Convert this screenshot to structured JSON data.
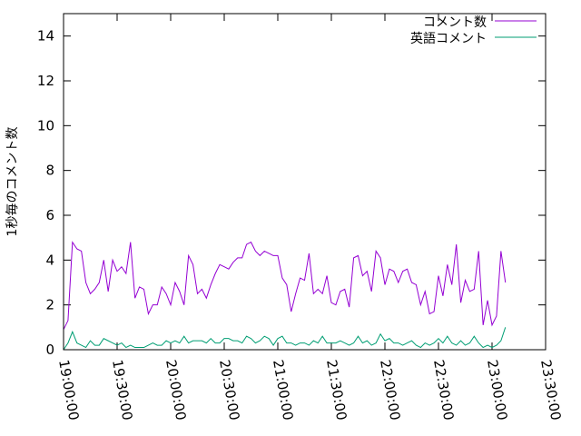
{
  "chart_data": {
    "type": "line",
    "title": "",
    "xlabel": "",
    "ylabel": "1秒毎のコメント数",
    "ylim": [
      0,
      15
    ],
    "xlim": [
      "19:00:00",
      "23:30:00"
    ],
    "x_ticks": [
      "19:00:00",
      "19:30:00",
      "20:00:00",
      "20:30:00",
      "21:00:00",
      "21:30:00",
      "22:00:00",
      "22:30:00",
      "23:00:00",
      "23:30:00"
    ],
    "y_ticks": [
      0,
      2,
      4,
      6,
      8,
      10,
      12,
      14
    ],
    "grid": false,
    "legend_position": "top-right",
    "x_interval_seconds": 150,
    "series": [
      {
        "name": "コメント数",
        "color": "#9400d3",
        "x_start": "19:00:00",
        "values": [
          0.9,
          1.3,
          4.8,
          4.5,
          4.4,
          3.0,
          2.5,
          2.7,
          3.0,
          4.0,
          2.6,
          4.0,
          3.5,
          3.7,
          3.4,
          4.8,
          2.3,
          2.8,
          2.7,
          1.6,
          2.0,
          2.0,
          2.8,
          2.5,
          2.0,
          3.0,
          2.6,
          2.0,
          4.2,
          3.8,
          2.5,
          2.7,
          2.3,
          2.9,
          3.4,
          3.8,
          3.7,
          3.6,
          3.9,
          4.1,
          4.1,
          4.7,
          4.8,
          4.4,
          4.2,
          4.4,
          4.3,
          4.2,
          4.2,
          3.2,
          2.9,
          1.7,
          2.5,
          3.2,
          3.1,
          4.3,
          2.5,
          2.7,
          2.5,
          3.3,
          2.1,
          2.0,
          2.6,
          2.7,
          1.9,
          4.1,
          4.2,
          3.3,
          3.5,
          2.6,
          4.4,
          4.1,
          2.9,
          3.6,
          3.5,
          3.0,
          3.5,
          3.6,
          3.0,
          2.9,
          2.0,
          2.6,
          1.6,
          1.7,
          3.3,
          2.4,
          3.8,
          2.9,
          4.7,
          2.1,
          3.1,
          2.6,
          2.7,
          4.4,
          1.1,
          2.2,
          1.1,
          1.5,
          4.4,
          3.0
        ]
      },
      {
        "name": "英語コメント",
        "color": "#009e73",
        "x_start": "19:00:00",
        "values": [
          0.0,
          0.3,
          0.8,
          0.3,
          0.2,
          0.1,
          0.4,
          0.2,
          0.2,
          0.5,
          0.4,
          0.3,
          0.2,
          0.3,
          0.1,
          0.2,
          0.1,
          0.1,
          0.1,
          0.2,
          0.3,
          0.2,
          0.2,
          0.4,
          0.3,
          0.4,
          0.3,
          0.6,
          0.3,
          0.4,
          0.4,
          0.4,
          0.3,
          0.5,
          0.3,
          0.3,
          0.5,
          0.5,
          0.4,
          0.4,
          0.3,
          0.6,
          0.5,
          0.3,
          0.4,
          0.6,
          0.5,
          0.2,
          0.5,
          0.6,
          0.3,
          0.3,
          0.2,
          0.3,
          0.3,
          0.2,
          0.4,
          0.3,
          0.6,
          0.3,
          0.3,
          0.3,
          0.4,
          0.3,
          0.2,
          0.3,
          0.6,
          0.3,
          0.4,
          0.2,
          0.3,
          0.7,
          0.4,
          0.5,
          0.3,
          0.3,
          0.2,
          0.3,
          0.4,
          0.2,
          0.1,
          0.3,
          0.2,
          0.3,
          0.5,
          0.3,
          0.6,
          0.3,
          0.2,
          0.4,
          0.2,
          0.3,
          0.6,
          0.3,
          0.1,
          0.2,
          0.1,
          0.2,
          0.4,
          1.0
        ]
      }
    ]
  }
}
